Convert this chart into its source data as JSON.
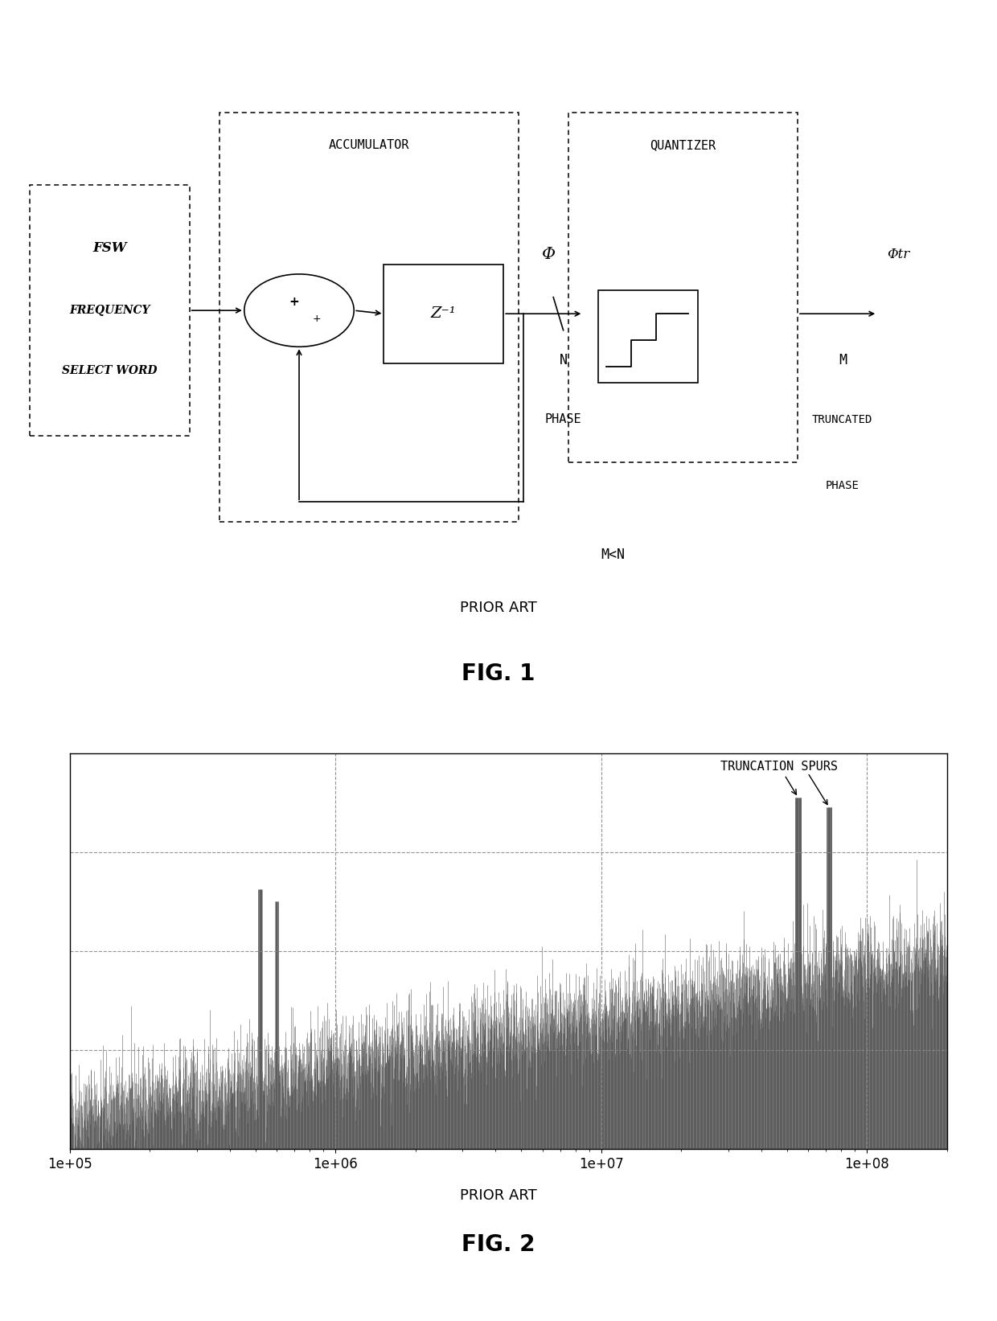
{
  "fig_width": 12.4,
  "fig_height": 16.43,
  "bg_color": "#ffffff",
  "fig1_title_line1": "PRIOR ART",
  "fig1_title_line2": "FIG. 1",
  "fig2_title_line1": "PRIOR ART",
  "fig2_title_line2": "FIG. 2",
  "truncation_spurs_label": "TRUNCATION SPURS",
  "fsw_line1": "FSW",
  "fsw_line2": "FREQUENCY",
  "fsw_line3": "SELECT WORD",
  "accum_label": "ACCUMULATOR",
  "quantizer_label": "QUANTIZER",
  "z_inv_label": "Z⁻¹",
  "phi_label": "Φ",
  "phi_tr_label": "Φtr",
  "n_label": "N",
  "m_label": "M",
  "phase_label": "PHASE",
  "trunc_phase_label1": "TRUNCATED",
  "trunc_phase_label2": "PHASE",
  "mcn_label": "M<N",
  "xmin": 100000.0,
  "xmax": 200000000.0,
  "ymin": -160,
  "ymax": 0,
  "grid_color": "#aaaaaa",
  "bar_color": "#444444",
  "dashed_line_color": "#888888"
}
